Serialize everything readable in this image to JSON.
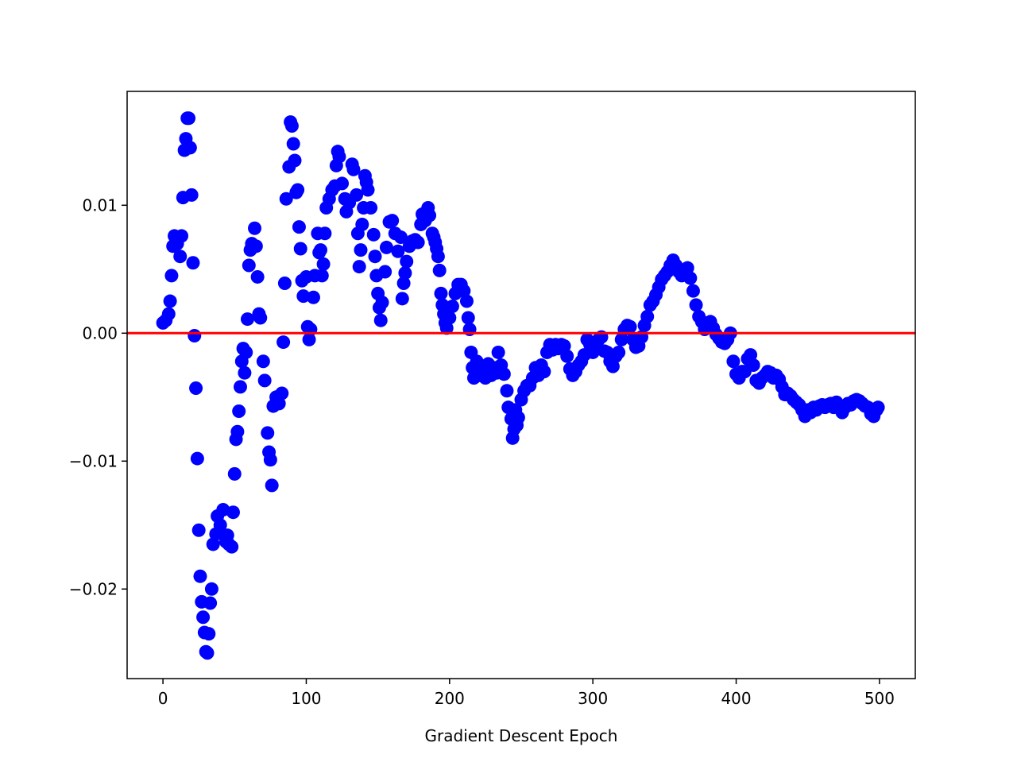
{
  "chart_data": {
    "type": "scatter",
    "xlabel": "Gradient Descent Epoch",
    "color": "#0000ff",
    "hline": {
      "value": 0,
      "color": "#ff0000"
    },
    "xlim": [
      -25,
      525
    ],
    "ylim": [
      -0.027,
      0.0189
    ],
    "xticks": [
      0,
      100,
      200,
      300,
      400,
      500
    ],
    "yticks": [
      {
        "value": -0.02,
        "label": "−0.02"
      },
      {
        "value": -0.01,
        "label": "−0.01"
      },
      {
        "value": 0,
        "label": "0.00"
      },
      0.01
    ],
    "x": [
      0,
      2,
      4,
      5,
      6,
      7,
      8,
      10,
      12,
      13,
      14,
      15,
      16,
      17,
      18,
      19,
      20,
      21,
      22,
      23,
      24,
      25,
      26,
      27,
      28,
      29,
      30,
      31,
      32,
      33,
      34,
      35,
      37,
      38,
      40,
      42,
      44,
      45,
      46,
      48,
      49,
      50,
      51,
      52,
      53,
      54,
      55,
      56,
      57,
      58,
      59,
      60,
      61,
      62,
      64,
      65,
      66,
      67,
      68,
      70,
      71,
      73,
      74,
      75,
      76,
      77,
      79,
      81,
      83,
      84,
      85,
      86,
      88,
      89,
      90,
      91,
      92,
      93,
      94,
      95,
      96,
      97,
      98,
      100,
      101,
      102,
      103,
      105,
      106,
      108,
      109,
      110,
      111,
      112,
      113,
      114,
      116,
      118,
      120,
      121,
      122,
      123,
      125,
      127,
      128,
      130,
      132,
      133,
      135,
      136,
      137,
      138,
      139,
      140,
      141,
      142,
      143,
      145,
      147,
      148,
      149,
      150,
      151,
      152,
      153,
      155,
      156,
      158,
      160,
      162,
      164,
      166,
      167,
      168,
      169,
      170,
      172,
      174,
      176,
      178,
      180,
      181,
      183,
      185,
      186,
      188,
      189,
      190,
      191,
      192,
      193,
      194,
      195,
      196,
      197,
      198,
      200,
      202,
      204,
      206,
      208,
      210,
      212,
      213,
      214,
      215,
      216,
      217,
      219,
      221,
      223,
      225,
      227,
      229,
      231,
      233,
      234,
      236,
      238,
      240,
      241,
      243,
      244,
      245,
      246,
      247,
      248,
      250,
      252,
      254,
      256,
      258,
      260,
      262,
      264,
      266,
      268,
      270,
      272,
      274,
      276,
      278,
      280,
      282,
      284,
      286,
      288,
      290,
      292,
      294,
      296,
      298,
      300,
      302,
      304,
      306,
      308,
      310,
      312,
      314,
      316,
      318,
      320,
      322,
      324,
      326,
      328,
      330,
      332,
      334,
      336,
      338,
      340,
      342,
      344,
      346,
      348,
      350,
      352,
      354,
      356,
      358,
      360,
      362,
      364,
      366,
      368,
      370,
      372,
      374,
      376,
      378,
      380,
      382,
      384,
      386,
      388,
      390,
      392,
      394,
      396,
      398,
      400,
      402,
      404,
      406,
      408,
      410,
      412,
      414,
      416,
      418,
      420,
      422,
      424,
      426,
      428,
      430,
      432,
      434,
      436,
      438,
      440,
      442,
      444,
      446,
      448,
      450,
      452,
      454,
      456,
      458,
      460,
      462,
      464,
      466,
      468,
      470,
      472,
      474,
      476,
      478,
      480,
      482,
      484,
      486,
      488,
      490,
      492,
      494,
      496,
      498,
      499
    ],
    "values": [
      0.0008,
      0.001,
      0.0015,
      0.0025,
      0.0045,
      0.0068,
      0.0076,
      0.007,
      0.006,
      0.0076,
      0.0106,
      0.0143,
      0.0152,
      0.0168,
      0.0168,
      0.0145,
      0.0108,
      0.0055,
      -0.0002,
      -0.0043,
      -0.0098,
      -0.0154,
      -0.019,
      -0.021,
      -0.0222,
      -0.0234,
      -0.0249,
      -0.025,
      -0.0235,
      -0.0211,
      -0.02,
      -0.0165,
      -0.0157,
      -0.0143,
      -0.015,
      -0.0138,
      -0.0163,
      -0.0158,
      -0.0165,
      -0.0167,
      -0.014,
      -0.011,
      -0.0083,
      -0.0077,
      -0.0061,
      -0.0042,
      -0.0022,
      -0.0012,
      -0.0031,
      -0.0015,
      0.0011,
      0.0053,
      0.0065,
      0.007,
      0.0082,
      0.0068,
      0.0044,
      0.0015,
      0.0012,
      -0.0022,
      -0.0037,
      -0.0078,
      -0.0093,
      -0.0099,
      -0.0119,
      -0.0057,
      -0.005,
      -0.0055,
      -0.0047,
      -0.0007,
      0.0039,
      0.0105,
      0.013,
      0.0165,
      0.0162,
      0.0148,
      0.0135,
      0.011,
      0.0112,
      0.0083,
      0.0066,
      0.0041,
      0.0029,
      0.0044,
      0.0005,
      -0.0005,
      0.0003,
      0.0028,
      0.0045,
      0.0078,
      0.0063,
      0.0065,
      0.0045,
      0.0054,
      0.0078,
      0.0098,
      0.0105,
      0.0112,
      0.0115,
      0.0131,
      0.0142,
      0.0138,
      0.0117,
      0.0105,
      0.0095,
      0.0102,
      0.0132,
      0.0128,
      0.0108,
      0.0078,
      0.0052,
      0.0065,
      0.0085,
      0.0098,
      0.0123,
      0.0118,
      0.0112,
      0.0098,
      0.0077,
      0.006,
      0.0045,
      0.0031,
      0.002,
      0.001,
      0.0024,
      0.0048,
      0.0067,
      0.0087,
      0.0088,
      0.0078,
      0.0064,
      0.0075,
      0.0027,
      0.0039,
      0.0047,
      0.0056,
      0.0068,
      0.0072,
      0.0073,
      0.0071,
      0.0085,
      0.0093,
      0.0088,
      0.0098,
      0.0092,
      0.0078,
      0.0075,
      0.0071,
      0.0066,
      0.006,
      0.0049,
      0.0031,
      0.0022,
      0.0015,
      0.0008,
      0.0004,
      0.0012,
      0.0021,
      0.0031,
      0.0038,
      0.0038,
      0.0033,
      0.0025,
      0.0012,
      0.0003,
      -0.0015,
      -0.0027,
      -0.0035,
      -0.0022,
      -0.0033,
      -0.0027,
      -0.0035,
      -0.0024,
      -0.0033,
      -0.0027,
      -0.0031,
      -0.0015,
      -0.0025,
      -0.0032,
      -0.0045,
      -0.0058,
      -0.0067,
      -0.0082,
      -0.0075,
      -0.006,
      -0.0072,
      -0.0066,
      -0.0052,
      -0.0045,
      -0.0041,
      -0.0041,
      -0.0035,
      -0.0027,
      -0.0033,
      -0.0025,
      -0.003,
      -0.0015,
      -0.0009,
      -0.0013,
      -0.0009,
      -0.0012,
      -0.0009,
      -0.001,
      -0.0018,
      -0.0028,
      -0.0033,
      -0.003,
      -0.0025,
      -0.0022,
      -0.0017,
      -0.0005,
      -0.0009,
      -0.0015,
      -0.0012,
      -0.0005,
      -0.0003,
      -0.0014,
      -0.0015,
      -0.0022,
      -0.0026,
      -0.0018,
      -0.0015,
      -0.0005,
      0.0003,
      0.0006,
      0.0005,
      -0.0005,
      -0.0011,
      -0.001,
      -0.0003,
      0.0006,
      0.0013,
      0.0022,
      0.0025,
      0.003,
      0.0036,
      0.0042,
      0.0045,
      0.0048,
      0.0053,
      0.0057,
      0.0053,
      0.0048,
      0.0045,
      0.0048,
      0.0051,
      0.0043,
      0.0033,
      0.0022,
      0.0013,
      0.0009,
      0.0003,
      0.0008,
      0.0009,
      0.0004,
      -0.0001,
      -0.0004,
      -0.0007,
      -0.0008,
      -0.0005,
      0,
      -0.0022,
      -0.0032,
      -0.0035,
      -0.003,
      -0.003,
      -0.002,
      -0.0017,
      -0.0025,
      -0.0037,
      -0.0039,
      -0.0035,
      -0.0033,
      -0.003,
      -0.0031,
      -0.0035,
      -0.0033,
      -0.0036,
      -0.0042,
      -0.0048,
      -0.0047,
      -0.0049,
      -0.0052,
      -0.0054,
      -0.0056,
      -0.006,
      -0.0065,
      -0.006,
      -0.0062,
      -0.0058,
      -0.006,
      -0.0057,
      -0.0056,
      -0.0058,
      -0.0056,
      -0.0055,
      -0.0058,
      -0.0054,
      -0.0058,
      -0.0062,
      -0.0058,
      -0.0055,
      -0.0056,
      -0.0053,
      -0.0052,
      -0.0053,
      -0.0055,
      -0.0057,
      -0.0058,
      -0.0063,
      -0.0065,
      -0.006,
      -0.0058
    ]
  }
}
